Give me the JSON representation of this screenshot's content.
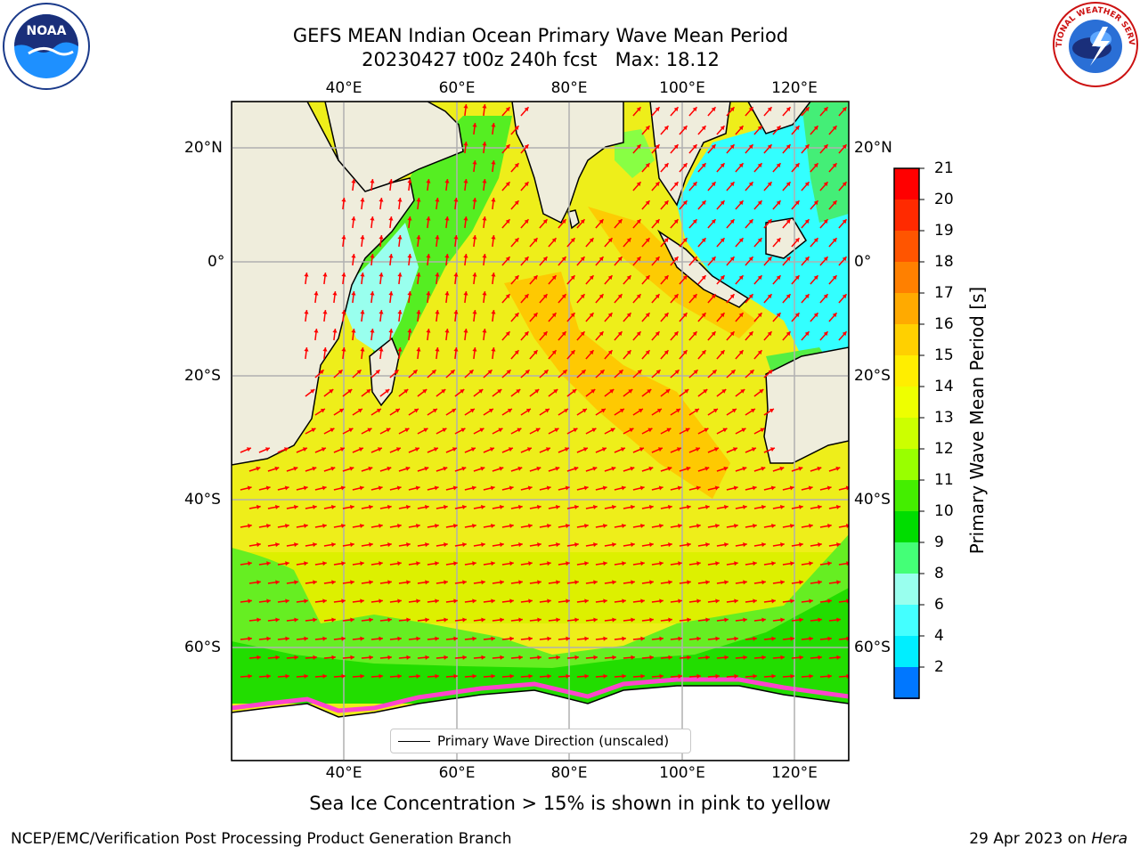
{
  "header": {
    "title": "GEFS MEAN Indian Ocean Primary Wave Mean Period",
    "subtitle": "20230427 t00z 240h fcst   Max: 18.12"
  },
  "logos": {
    "left": {
      "icon": "noaa-logo-icon",
      "text": "NOAA"
    },
    "right": {
      "icon": "national-weather-service-logo-icon",
      "text": "NATIONAL WEATHER SERVICE"
    }
  },
  "map": {
    "lon_labels": [
      "40°E",
      "60°E",
      "80°E",
      "100°E",
      "120°E"
    ],
    "lat_labels": [
      "20°N",
      "0°",
      "20°S",
      "40°S",
      "60°S"
    ],
    "land_color": "#efeddc",
    "grid_color": "#b0b0b0",
    "arrow_color": "#ff0000"
  },
  "legend": {
    "label": "Primary Wave Direction (unscaled)"
  },
  "colorbar": {
    "title": "Primary Wave Mean Period [s]",
    "ticks": [
      "21",
      "20",
      "19",
      "18",
      "17",
      "16",
      "15",
      "14",
      "13",
      "12",
      "11",
      "10",
      "9",
      "8",
      "6",
      "4",
      "2"
    ],
    "colors": [
      "#ff0000",
      "#ff2a00",
      "#ff5500",
      "#ff8000",
      "#ffaa00",
      "#ffd000",
      "#ffee00",
      "#eeff00",
      "#ccff00",
      "#99ff00",
      "#44ee00",
      "#00dd00",
      "#44ff77",
      "#99ffee",
      "#44ffff",
      "#00eeff",
      "#0077ff"
    ],
    "extend_color": "#0000ee"
  },
  "ice_note": "Sea Ice Concentration > 15% is shown in pink to yellow",
  "footer": {
    "left": "NCEP/EMC/Verification Post Processing Product Generation Branch",
    "right_prefix": "29 Apr 2023 on ",
    "right_host": "Hera"
  }
}
